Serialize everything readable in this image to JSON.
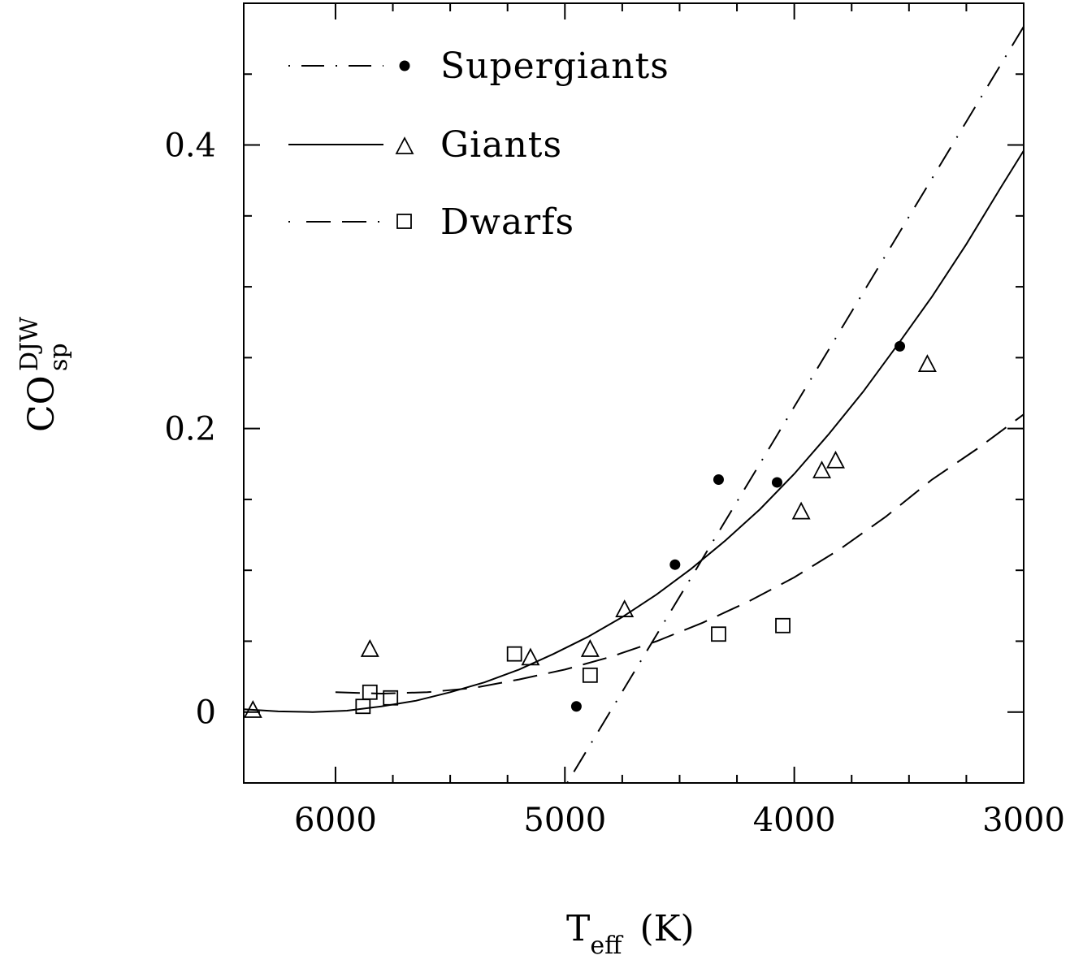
{
  "chart_data": {
    "type": "scatter",
    "xlabel": {
      "main": "T",
      "sub": "eff",
      "unit": "(K)"
    },
    "ylabel": {
      "main": "CO",
      "sub": "sp",
      "sup": "DJW"
    },
    "xlim": [
      6400,
      3000
    ],
    "ylim": [
      -0.05,
      0.5
    ],
    "x_ticks": [
      6000,
      5000,
      4000,
      3000
    ],
    "x_tick_labels": [
      "6000",
      "5000",
      "4000",
      "3000"
    ],
    "y_ticks": [
      0,
      0.2,
      0.4
    ],
    "y_tick_labels": [
      "0",
      "0.2",
      "0.4"
    ],
    "legend_position": "top-left",
    "series": [
      {
        "name": "Supergiants",
        "marker": "filled-circle",
        "line": "dash-dot",
        "points": [
          [
            4950,
            0.004
          ],
          [
            4520,
            0.104
          ],
          [
            4330,
            0.164
          ],
          [
            4075,
            0.162
          ],
          [
            3540,
            0.258
          ]
        ],
        "fit": [
          [
            4990,
            -0.05
          ],
          [
            2920,
            0.505
          ]
        ]
      },
      {
        "name": "Giants",
        "marker": "open-triangle",
        "line": "solid",
        "points": [
          [
            6360,
            0.001
          ],
          [
            5850,
            0.044
          ],
          [
            5150,
            0.038
          ],
          [
            4890,
            0.044
          ],
          [
            4740,
            0.072
          ],
          [
            3970,
            0.141
          ],
          [
            3880,
            0.17
          ],
          [
            3820,
            0.177
          ],
          [
            3420,
            0.245
          ]
        ],
        "fit": [
          [
            6400,
            0.002
          ],
          [
            6250,
            0.0005
          ],
          [
            6100,
            0.0
          ],
          [
            5950,
            0.001
          ],
          [
            5800,
            0.004
          ],
          [
            5650,
            0.008
          ],
          [
            5500,
            0.014
          ],
          [
            5350,
            0.021
          ],
          [
            5200,
            0.03
          ],
          [
            5050,
            0.041
          ],
          [
            4900,
            0.053
          ],
          [
            4750,
            0.067
          ],
          [
            4600,
            0.083
          ],
          [
            4450,
            0.101
          ],
          [
            4300,
            0.121
          ],
          [
            4150,
            0.143
          ],
          [
            4000,
            0.168
          ],
          [
            3850,
            0.196
          ],
          [
            3700,
            0.226
          ],
          [
            3550,
            0.259
          ],
          [
            3400,
            0.293
          ],
          [
            3250,
            0.33
          ],
          [
            3100,
            0.37
          ],
          [
            3000,
            0.396
          ]
        ]
      },
      {
        "name": "Dwarfs",
        "marker": "open-square",
        "line": "dashed",
        "points": [
          [
            5880,
            0.004
          ],
          [
            5850,
            0.014
          ],
          [
            5760,
            0.01
          ],
          [
            5220,
            0.041
          ],
          [
            4890,
            0.026
          ],
          [
            4330,
            0.055
          ],
          [
            4050,
            0.061
          ]
        ],
        "fit": [
          [
            6000,
            0.014
          ],
          [
            5800,
            0.013
          ],
          [
            5600,
            0.014
          ],
          [
            5400,
            0.017
          ],
          [
            5200,
            0.023
          ],
          [
            5000,
            0.03
          ],
          [
            4800,
            0.039
          ],
          [
            4600,
            0.05
          ],
          [
            4400,
            0.063
          ],
          [
            4200,
            0.078
          ],
          [
            4000,
            0.095
          ],
          [
            3800,
            0.115
          ],
          [
            3600,
            0.138
          ],
          [
            3400,
            0.164
          ],
          [
            3200,
            0.186
          ],
          [
            3000,
            0.21
          ]
        ]
      }
    ]
  }
}
